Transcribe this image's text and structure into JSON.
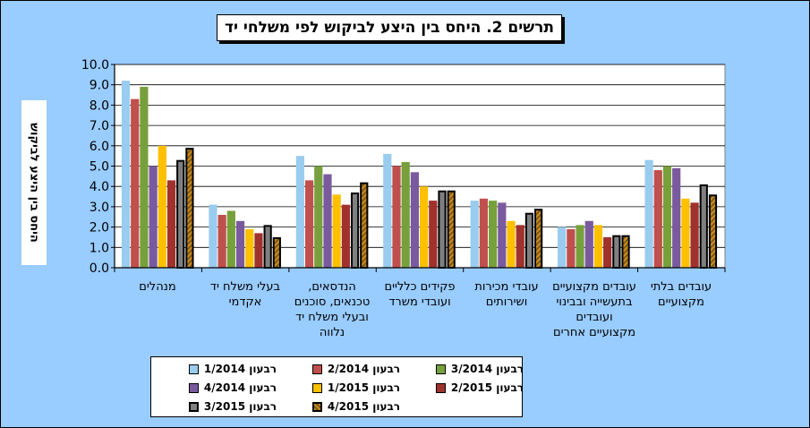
{
  "chart_data": {
    "type": "bar",
    "title": "תרשים 2. היחס בין היצע לביקוש לפי משלחי יד",
    "ylabel": "היחס בין היצע לביקוש",
    "xlabel": "",
    "ylim": [
      0,
      10
    ],
    "yticks": [
      "0.0",
      "1.0",
      "2.0",
      "3.0",
      "4.0",
      "5.0",
      "6.0",
      "7.0",
      "8.0",
      "9.0",
      "10.0"
    ],
    "grid": true,
    "legend_position": "bottom",
    "categories": [
      "מנהלים",
      "בעלי משלח יד אקדמי",
      "הנדסאים, טכנאים, סוכנים ובעלי משלח יד נלווה",
      "פקידים כלליים ועובדי משרד",
      "עובדי מכירות ושירותים",
      "עובדים מקצועיים בתעשייה ובבינוי ועובדים מקצועיים אחרים",
      "עובדים בלתי מקצועיים"
    ],
    "series": [
      {
        "name": "רבעון 1/2014",
        "color": "#99CCEE",
        "values": [
          9.2,
          3.1,
          5.5,
          5.6,
          3.3,
          2.0,
          5.3
        ]
      },
      {
        "name": "רבעון 2/2014",
        "color": "#C0504D",
        "values": [
          8.3,
          2.6,
          4.3,
          5.0,
          3.4,
          1.9,
          4.8
        ]
      },
      {
        "name": "רבעון 3/2014",
        "color": "#77A03C",
        "values": [
          8.9,
          2.8,
          5.0,
          5.2,
          3.3,
          2.1,
          5.0
        ]
      },
      {
        "name": "רבעון 4/2014",
        "color": "#7A5A9E",
        "values": [
          5.0,
          2.3,
          4.6,
          4.7,
          3.2,
          2.3,
          4.9
        ]
      },
      {
        "name": "רבעון 1/2015",
        "color": "#FFC000",
        "values": [
          6.0,
          1.9,
          3.6,
          4.0,
          2.3,
          2.1,
          3.4
        ]
      },
      {
        "name": "רבעון 2/2015",
        "color": "#A0322E",
        "values": [
          4.3,
          1.7,
          3.1,
          3.3,
          2.1,
          1.5,
          3.2
        ]
      },
      {
        "name": "רבעון 3/2015",
        "color": "#808080",
        "values": [
          5.3,
          2.1,
          3.7,
          3.8,
          2.7,
          1.6,
          4.1
        ]
      },
      {
        "name": "רבעון 4/2015",
        "color": "#8B6B1E",
        "values": [
          5.9,
          1.5,
          4.2,
          3.8,
          2.9,
          1.6,
          3.6
        ]
      }
    ]
  }
}
